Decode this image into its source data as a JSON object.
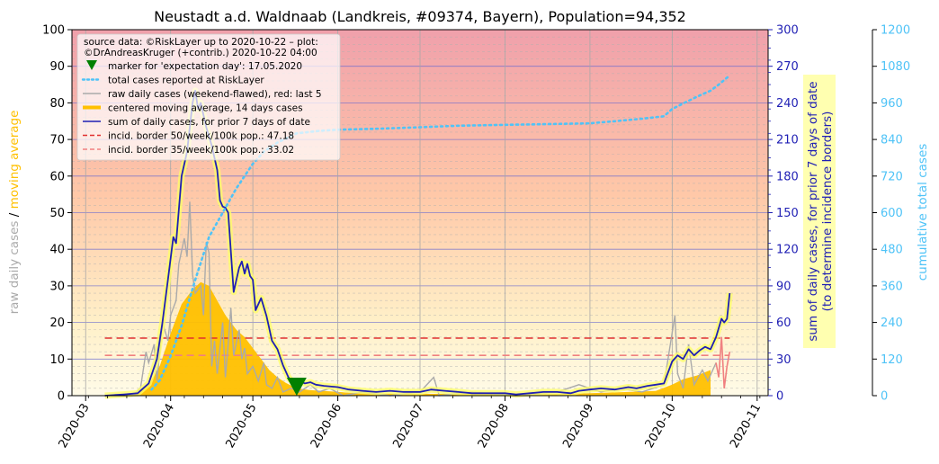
{
  "chart_data": {
    "type": "line",
    "title": "Neustadt a.d. Waldnaab (Landkreis, #09374, Bayern), Population=94,352",
    "source_note_lines": [
      "source data: ©RiskLayer up to 2020-10-22 – plot:",
      "©DrAndreasKruger (+contrib.) 2020-10-22 04:00"
    ],
    "x_ticks": [
      "2020-03",
      "2020-04",
      "2020-05",
      "2020-06",
      "2020-07",
      "2020-08",
      "2020-09",
      "2020-10",
      "2020-11"
    ],
    "x_range": [
      "2020-02-25",
      "2020-11-05"
    ],
    "left_axis": {
      "ylim": [
        0,
        100
      ],
      "ticks": [
        0,
        10,
        20,
        30,
        40,
        50,
        60,
        70,
        80,
        90,
        100
      ],
      "label_parts": [
        "raw daily cases",
        "/",
        "moving average"
      ],
      "label_colors": [
        "#aaaaaa",
        "#000000",
        "#ffc000"
      ]
    },
    "right_axis_1": {
      "ylim": [
        0,
        300
      ],
      "ticks": [
        0,
        30,
        60,
        90,
        120,
        150,
        180,
        210,
        240,
        270,
        300
      ],
      "label_lines": [
        "sum of daily cases, for prior 7 days of date",
        "(to determine incidence borders)"
      ],
      "color": "#1f1fb4"
    },
    "right_axis_2": {
      "ylim": [
        0,
        1200
      ],
      "ticks": [
        0,
        120,
        240,
        360,
        480,
        600,
        720,
        840,
        960,
        1080,
        1200
      ],
      "label": "cumulative total cases",
      "color": "#4fc3f7"
    },
    "legend": {
      "position": "top-left",
      "entries": [
        {
          "label": "marker for 'expectation day': 17.05.2020",
          "kind": "marker",
          "color": "#008000"
        },
        {
          "label": "total cases reported at RiskLayer",
          "kind": "dotted",
          "color": "#4fc3f7"
        },
        {
          "label": "raw daily cases (weekend-flawed), red: last 5",
          "kind": "line",
          "color": "#aaaaaa"
        },
        {
          "label": "centered moving average, 14 days cases",
          "kind": "thick",
          "color": "#ffc000"
        },
        {
          "label": "sum of daily cases, for prior 7 days of date",
          "kind": "line",
          "color": "#1f1fb4"
        },
        {
          "label": "incid. border 50/week/100k pop.: 47.18",
          "kind": "dashed",
          "color": "#e03030"
        },
        {
          "label": "incid. border 35/week/100k pop.: 33.02",
          "kind": "dashed",
          "color": "#f08080"
        }
      ]
    },
    "expectation_day": "2020-05-17",
    "incidence_borders": [
      {
        "name": "50/week/100k",
        "value": 47.18,
        "color": "#e03030",
        "start": "2020-03-08",
        "end": "2020-10-22"
      },
      {
        "name": "35/week/100k",
        "value": 33.02,
        "color": "#f08080",
        "start": "2020-03-08",
        "end": "2020-10-22"
      }
    ],
    "series": [
      {
        "name": "sum of daily cases, for prior 7 days of date",
        "axis": "right_axis_1",
        "color": "#1f1fb4",
        "points": [
          [
            "2020-03-08",
            0
          ],
          [
            "2020-03-15",
            1
          ],
          [
            "2020-03-20",
            2
          ],
          [
            "2020-03-24",
            10
          ],
          [
            "2020-03-27",
            30
          ],
          [
            "2020-03-29",
            60
          ],
          [
            "2020-03-31",
            95
          ],
          [
            "2020-04-02",
            130
          ],
          [
            "2020-04-03",
            125
          ],
          [
            "2020-04-05",
            180
          ],
          [
            "2020-04-07",
            200
          ],
          [
            "2020-04-08",
            220
          ],
          [
            "2020-04-09",
            240
          ],
          [
            "2020-04-10",
            250
          ],
          [
            "2020-04-11",
            235
          ],
          [
            "2020-04-12",
            240
          ],
          [
            "2020-04-14",
            220
          ],
          [
            "2020-04-16",
            205
          ],
          [
            "2020-04-18",
            185
          ],
          [
            "2020-04-19",
            160
          ],
          [
            "2020-04-20",
            155
          ],
          [
            "2020-04-21",
            154
          ],
          [
            "2020-04-22",
            150
          ],
          [
            "2020-04-24",
            85
          ],
          [
            "2020-04-26",
            105
          ],
          [
            "2020-04-27",
            110
          ],
          [
            "2020-04-28",
            100
          ],
          [
            "2020-04-29",
            108
          ],
          [
            "2020-04-30",
            98
          ],
          [
            "2020-05-01",
            95
          ],
          [
            "2020-05-02",
            70
          ],
          [
            "2020-05-04",
            80
          ],
          [
            "2020-05-06",
            65
          ],
          [
            "2020-05-08",
            45
          ],
          [
            "2020-05-10",
            38
          ],
          [
            "2020-05-12",
            25
          ],
          [
            "2020-05-14",
            15
          ],
          [
            "2020-05-16",
            10
          ],
          [
            "2020-05-18",
            12
          ],
          [
            "2020-05-20",
            10
          ],
          [
            "2020-05-22",
            11
          ],
          [
            "2020-05-24",
            9
          ],
          [
            "2020-05-27",
            8
          ],
          [
            "2020-06-01",
            7
          ],
          [
            "2020-06-05",
            5
          ],
          [
            "2020-06-10",
            4
          ],
          [
            "2020-06-15",
            3
          ],
          [
            "2020-06-20",
            4
          ],
          [
            "2020-06-25",
            3
          ],
          [
            "2020-07-01",
            3
          ],
          [
            "2020-07-05",
            5
          ],
          [
            "2020-07-10",
            4
          ],
          [
            "2020-07-15",
            3
          ],
          [
            "2020-07-20",
            2
          ],
          [
            "2020-07-25",
            2
          ],
          [
            "2020-08-01",
            2
          ],
          [
            "2020-08-05",
            1
          ],
          [
            "2020-08-10",
            2
          ],
          [
            "2020-08-15",
            3
          ],
          [
            "2020-08-20",
            3
          ],
          [
            "2020-08-25",
            2
          ],
          [
            "2020-08-28",
            4
          ],
          [
            "2020-09-01",
            5
          ],
          [
            "2020-09-05",
            6
          ],
          [
            "2020-09-10",
            5
          ],
          [
            "2020-09-15",
            7
          ],
          [
            "2020-09-18",
            6
          ],
          [
            "2020-09-22",
            8
          ],
          [
            "2020-09-25",
            9
          ],
          [
            "2020-09-28",
            10
          ],
          [
            "2020-10-01",
            28
          ],
          [
            "2020-10-03",
            33
          ],
          [
            "2020-10-05",
            30
          ],
          [
            "2020-10-07",
            38
          ],
          [
            "2020-10-09",
            33
          ],
          [
            "2020-10-11",
            37
          ],
          [
            "2020-10-13",
            40
          ],
          [
            "2020-10-15",
            38
          ],
          [
            "2020-10-17",
            48
          ],
          [
            "2020-10-19",
            63
          ],
          [
            "2020-10-20",
            60
          ],
          [
            "2020-10-21",
            63
          ],
          [
            "2020-10-22",
            84
          ]
        ]
      },
      {
        "name": "centered moving average, 14 days cases",
        "axis": "left_axis",
        "color": "#ffc000",
        "points": [
          [
            "2020-03-08",
            0
          ],
          [
            "2020-03-15",
            0.3
          ],
          [
            "2020-03-20",
            1
          ],
          [
            "2020-03-24",
            3
          ],
          [
            "2020-03-28",
            8
          ],
          [
            "2020-04-01",
            17
          ],
          [
            "2020-04-05",
            25
          ],
          [
            "2020-04-09",
            29
          ],
          [
            "2020-04-12",
            31
          ],
          [
            "2020-04-15",
            30
          ],
          [
            "2020-04-18",
            26
          ],
          [
            "2020-04-21",
            22
          ],
          [
            "2020-04-25",
            18
          ],
          [
            "2020-04-28",
            16
          ],
          [
            "2020-05-01",
            13
          ],
          [
            "2020-05-04",
            10
          ],
          [
            "2020-05-07",
            7
          ],
          [
            "2020-05-10",
            5
          ],
          [
            "2020-05-13",
            3.5
          ],
          [
            "2020-05-17",
            2
          ],
          [
            "2020-05-22",
            1.5
          ],
          [
            "2020-05-27",
            1.3
          ],
          [
            "2020-06-05",
            0.8
          ],
          [
            "2020-06-15",
            0.6
          ],
          [
            "2020-07-01",
            0.5
          ],
          [
            "2020-07-15",
            0.5
          ],
          [
            "2020-08-01",
            0.3
          ],
          [
            "2020-08-15",
            0.4
          ],
          [
            "2020-09-01",
            0.7
          ],
          [
            "2020-09-15",
            1
          ],
          [
            "2020-09-25",
            1.3
          ],
          [
            "2020-10-01",
            3
          ],
          [
            "2020-10-05",
            4.5
          ],
          [
            "2020-10-10",
            5.5
          ],
          [
            "2020-10-15",
            7
          ]
        ]
      },
      {
        "name": "raw daily cases (weekend-flawed), red: last 5",
        "axis": "left_axis",
        "color": "#aaaaaa",
        "points": [
          [
            "2020-03-08",
            0
          ],
          [
            "2020-03-18",
            0
          ],
          [
            "2020-03-21",
            2
          ],
          [
            "2020-03-23",
            12
          ],
          [
            "2020-03-24",
            9
          ],
          [
            "2020-03-26",
            14
          ],
          [
            "2020-03-27",
            4
          ],
          [
            "2020-03-29",
            20
          ],
          [
            "2020-03-31",
            15
          ],
          [
            "2020-04-01",
            22
          ],
          [
            "2020-04-03",
            26
          ],
          [
            "2020-04-04",
            36
          ],
          [
            "2020-04-06",
            43
          ],
          [
            "2020-04-07",
            38
          ],
          [
            "2020-04-08",
            53
          ],
          [
            "2020-04-09",
            33
          ],
          [
            "2020-04-10",
            28
          ],
          [
            "2020-04-12",
            30
          ],
          [
            "2020-04-13",
            22
          ],
          [
            "2020-04-14",
            42
          ],
          [
            "2020-04-15",
            39
          ],
          [
            "2020-04-16",
            8
          ],
          [
            "2020-04-17",
            15
          ],
          [
            "2020-04-18",
            6
          ],
          [
            "2020-04-20",
            20
          ],
          [
            "2020-04-21",
            5
          ],
          [
            "2020-04-22",
            14
          ],
          [
            "2020-04-23",
            24
          ],
          [
            "2020-04-24",
            11
          ],
          [
            "2020-04-26",
            18
          ],
          [
            "2020-04-27",
            10
          ],
          [
            "2020-04-28",
            13
          ],
          [
            "2020-04-29",
            6
          ],
          [
            "2020-05-01",
            8
          ],
          [
            "2020-05-03",
            4
          ],
          [
            "2020-05-05",
            9
          ],
          [
            "2020-05-06",
            3
          ],
          [
            "2020-05-08",
            2
          ],
          [
            "2020-05-10",
            5
          ],
          [
            "2020-05-12",
            1
          ],
          [
            "2020-05-15",
            2
          ],
          [
            "2020-05-18",
            1
          ],
          [
            "2020-05-22",
            3
          ],
          [
            "2020-05-25",
            1
          ],
          [
            "2020-05-29",
            2
          ],
          [
            "2020-06-03",
            0
          ],
          [
            "2020-06-10",
            1
          ],
          [
            "2020-06-20",
            0
          ],
          [
            "2020-07-01",
            1
          ],
          [
            "2020-07-06",
            5
          ],
          [
            "2020-07-08",
            0
          ],
          [
            "2020-07-20",
            1
          ],
          [
            "2020-08-05",
            0
          ],
          [
            "2020-08-20",
            1
          ],
          [
            "2020-08-28",
            3
          ],
          [
            "2020-09-05",
            1
          ],
          [
            "2020-09-12",
            2
          ],
          [
            "2020-09-20",
            1
          ],
          [
            "2020-09-28",
            3
          ],
          [
            "2020-10-02",
            22
          ],
          [
            "2020-10-03",
            6
          ],
          [
            "2020-10-05",
            2
          ],
          [
            "2020-10-07",
            14
          ],
          [
            "2020-10-09",
            3
          ],
          [
            "2020-10-12",
            7
          ],
          [
            "2020-10-14",
            4
          ],
          [
            "2020-10-17",
            9
          ]
        ]
      },
      {
        "name": "raw daily cases, last 5",
        "axis": "left_axis",
        "color": "#f08080",
        "points": [
          [
            "2020-10-17",
            9
          ],
          [
            "2020-10-18",
            5
          ],
          [
            "2020-10-19",
            16
          ],
          [
            "2020-10-20",
            2
          ],
          [
            "2020-10-21",
            8
          ],
          [
            "2020-10-22",
            12
          ]
        ]
      },
      {
        "name": "total cases reported at RiskLayer",
        "axis": "right_axis_2",
        "color": "#4fc3f7",
        "points": [
          [
            "2020-03-25",
            20
          ],
          [
            "2020-03-28",
            50
          ],
          [
            "2020-04-01",
            130
          ],
          [
            "2020-04-05",
            230
          ],
          [
            "2020-04-10",
            380
          ],
          [
            "2020-04-15",
            520
          ],
          [
            "2020-04-20",
            600
          ],
          [
            "2020-04-25",
            680
          ],
          [
            "2020-05-01",
            760
          ],
          [
            "2020-05-05",
            800
          ],
          [
            "2020-05-10",
            830
          ],
          [
            "2020-05-17",
            860
          ],
          [
            "2020-05-25",
            868
          ],
          [
            "2020-06-01",
            872
          ],
          [
            "2020-06-15",
            875
          ],
          [
            "2020-07-01",
            880
          ],
          [
            "2020-07-15",
            885
          ],
          [
            "2020-08-01",
            888
          ],
          [
            "2020-08-15",
            890
          ],
          [
            "2020-09-01",
            893
          ],
          [
            "2020-09-10",
            900
          ],
          [
            "2020-09-20",
            908
          ],
          [
            "2020-09-28",
            916
          ],
          [
            "2020-10-01",
            940
          ],
          [
            "2020-10-05",
            958
          ],
          [
            "2020-10-10",
            980
          ],
          [
            "2020-10-15",
            1000
          ],
          [
            "2020-10-18",
            1020
          ],
          [
            "2020-10-20",
            1035
          ],
          [
            "2020-10-22",
            1050
          ]
        ]
      }
    ]
  }
}
